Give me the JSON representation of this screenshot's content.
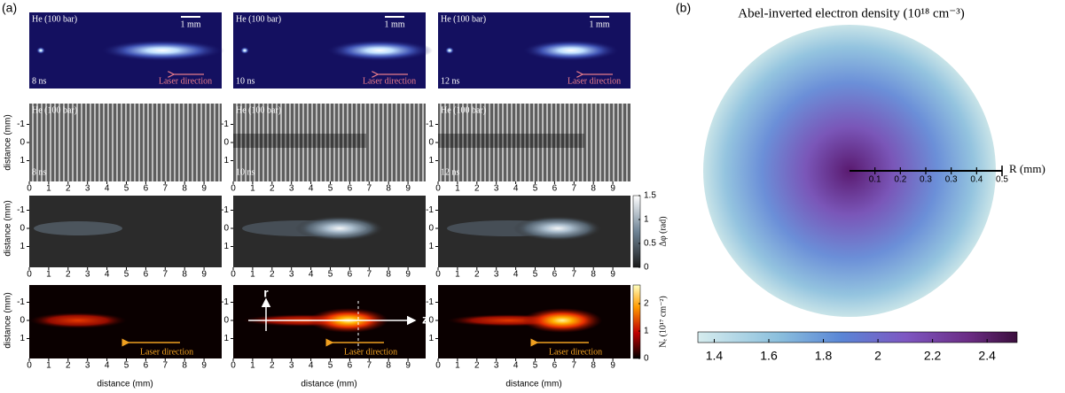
{
  "panel_a": {
    "label": "(a)",
    "gas": "He (100 bar)",
    "scale_bar": "1 mm",
    "laser": "Laser direction",
    "times": [
      "8 ns",
      "10 ns",
      "12 ns"
    ],
    "xticks": [
      0,
      1,
      2,
      3,
      4,
      5,
      6,
      7,
      8,
      9
    ],
    "yticks": [
      -1,
      0,
      1
    ],
    "xlabel": "distance (mm)",
    "ylabel": "distance (mm)",
    "phase_colorbar": {
      "label": "Δφ (rad)",
      "ticks": [
        0,
        0.5,
        1,
        1.5
      ],
      "lim": [
        0,
        1.5
      ]
    },
    "density_colorbar": {
      "label": "Nₑ (10¹⁷ cm⁻²)",
      "ticks": [
        0,
        1,
        2
      ],
      "lim": [
        0,
        2.68
      ]
    },
    "axis_r": "r",
    "axis_z": "z"
  },
  "panel_b": {
    "label": "(b)",
    "title": "Abel-inverted electron density (10¹⁸ cm⁻³)",
    "axis_label": "R (mm)",
    "radius_ticks": [
      0.1,
      0.2,
      0.3,
      0.3,
      0.4,
      0.5
    ],
    "colorbar": {
      "ticks": [
        1.4,
        1.6,
        1.8,
        2,
        2.2,
        2.4
      ],
      "lim": [
        1.34,
        2.51
      ]
    }
  }
}
